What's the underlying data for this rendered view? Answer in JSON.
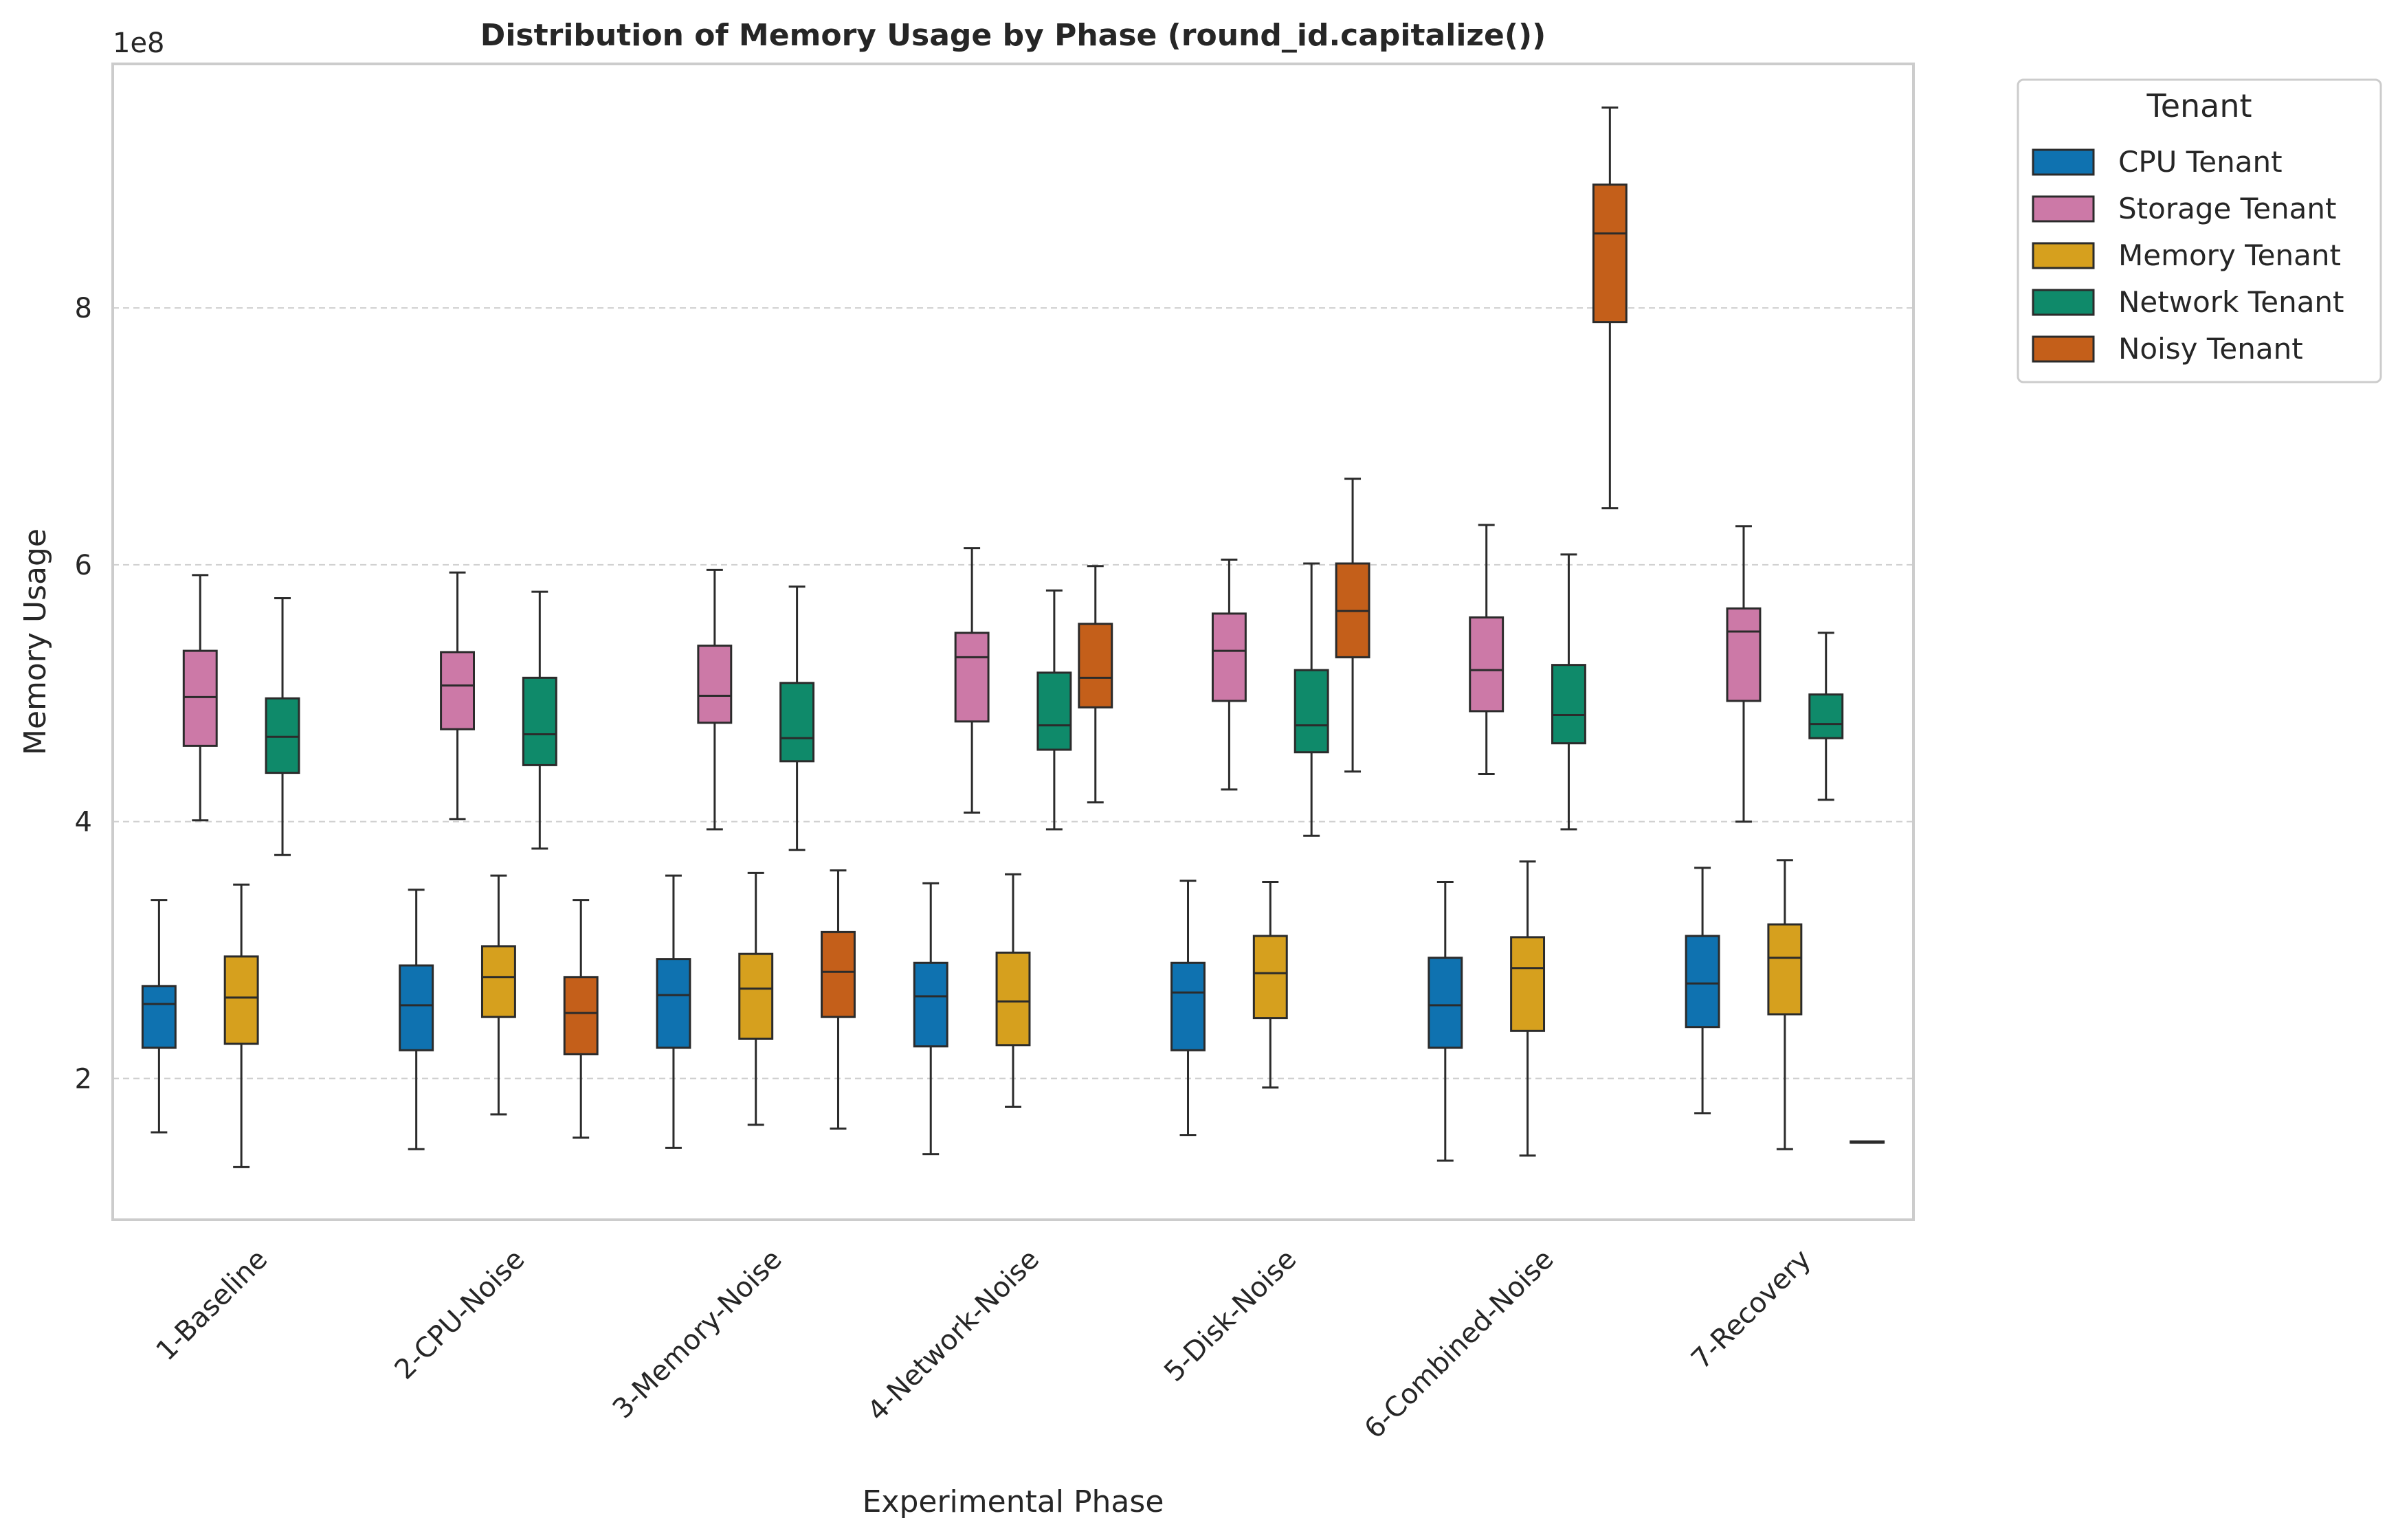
{
  "chart_data": {
    "type": "box",
    "title": "Distribution of Memory Usage by Phase (round_id.capitalize())",
    "xlabel": "Experimental Phase",
    "ylabel": "Memory Usage",
    "y_offset_label": "1e8",
    "y_scale": 100000000,
    "ylim": [
      0.9,
      9.9
    ],
    "yticks": [
      2,
      4,
      6,
      8
    ],
    "grid": "horizontal dashed",
    "legend": {
      "title": "Tenant",
      "placement": "outside top-right"
    },
    "categories": [
      "1-Baseline",
      "2-CPU-Noise",
      "3-Memory-Noise",
      "4-Network-Noise",
      "5-Disk-Noise",
      "6-Combined-Noise",
      "7-Recovery"
    ],
    "series": [
      {
        "name": "CPU Tenant",
        "color": "#0f72b0",
        "boxes": [
          [
            1.58,
            2.24,
            2.58,
            2.72,
            3.39
          ],
          [
            1.45,
            2.22,
            2.57,
            2.88,
            3.47
          ],
          [
            1.46,
            2.24,
            2.65,
            2.93,
            3.58
          ],
          [
            1.41,
            2.25,
            2.64,
            2.9,
            3.52
          ],
          [
            1.56,
            2.22,
            2.67,
            2.9,
            3.54
          ],
          [
            1.36,
            2.24,
            2.57,
            2.94,
            3.53
          ],
          [
            1.73,
            2.4,
            2.74,
            3.11,
            3.64
          ]
        ]
      },
      {
        "name": "Storage Tenant",
        "color": "#cc79a7",
        "boxes": [
          [
            4.01,
            4.59,
            4.97,
            5.33,
            5.92
          ],
          [
            4.02,
            4.72,
            5.06,
            5.32,
            5.94
          ],
          [
            3.94,
            4.77,
            4.98,
            5.37,
            5.96
          ],
          [
            4.07,
            4.78,
            5.28,
            5.47,
            6.13
          ],
          [
            4.25,
            4.94,
            5.33,
            5.62,
            6.04
          ],
          [
            4.37,
            4.86,
            5.18,
            5.59,
            6.31
          ],
          [
            4.0,
            4.94,
            5.48,
            5.66,
            6.3
          ]
        ]
      },
      {
        "name": "Memory Tenant",
        "color": "#d6a01e",
        "boxes": [
          [
            1.31,
            2.27,
            2.63,
            2.95,
            3.51
          ],
          [
            1.72,
            2.48,
            2.79,
            3.03,
            3.58
          ],
          [
            1.64,
            2.31,
            2.7,
            2.97,
            3.6
          ],
          [
            1.78,
            2.26,
            2.6,
            2.98,
            3.59
          ],
          [
            1.93,
            2.47,
            2.82,
            3.11,
            3.53
          ],
          [
            1.4,
            2.37,
            2.86,
            3.1,
            3.69
          ],
          [
            1.45,
            2.5,
            2.94,
            3.2,
            3.7
          ]
        ]
      },
      {
        "name": "Network Tenant",
        "color": "#0f8a6a",
        "boxes": [
          [
            3.74,
            4.38,
            4.66,
            4.96,
            5.74
          ],
          [
            3.79,
            4.44,
            4.68,
            5.12,
            5.79
          ],
          [
            3.78,
            4.47,
            4.65,
            5.08,
            5.83
          ],
          [
            3.94,
            4.56,
            4.75,
            5.16,
            5.8
          ],
          [
            3.89,
            4.54,
            4.75,
            5.18,
            6.01
          ],
          [
            3.94,
            4.61,
            4.83,
            5.22,
            6.08
          ],
          [
            4.17,
            4.65,
            4.76,
            4.99,
            5.47
          ]
        ]
      },
      {
        "name": "Noisy Tenant",
        "color": "#c45f1a",
        "boxes": [
          null,
          [
            1.54,
            2.19,
            2.51,
            2.79,
            3.39
          ],
          [
            1.61,
            2.48,
            2.83,
            3.14,
            3.62
          ],
          [
            4.15,
            4.89,
            5.12,
            5.54,
            5.99
          ],
          [
            4.39,
            5.28,
            5.64,
            6.01,
            6.67
          ],
          [
            6.44,
            7.89,
            8.58,
            8.96,
            9.56
          ],
          [
            1.5,
            1.5,
            1.5,
            1.51,
            1.51
          ]
        ]
      }
    ]
  }
}
